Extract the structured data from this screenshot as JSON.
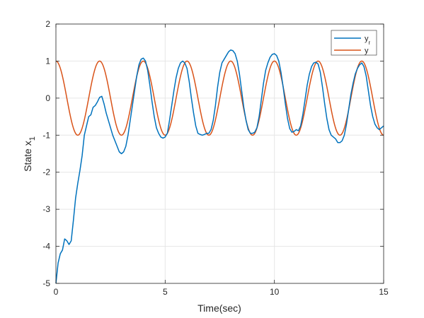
{
  "chart_data": {
    "type": "line",
    "xlabel": "Time(sec)",
    "ylabel": "State x",
    "ylabel_subscript": "1",
    "xlim": [
      0,
      15
    ],
    "ylim": [
      -5,
      2
    ],
    "xticks": [
      0,
      5,
      10,
      15
    ],
    "yticks": [
      -5,
      -4,
      -3,
      -2,
      -1,
      0,
      1,
      2
    ],
    "grid": true,
    "legend_position": "top-right",
    "series": [
      {
        "name": "y",
        "name_subscript": "r",
        "color": "#0072BD",
        "x": [
          0.0,
          0.1,
          0.2,
          0.3,
          0.4,
          0.5,
          0.6,
          0.7,
          0.8,
          0.9,
          1.0,
          1.1,
          1.2,
          1.3,
          1.4,
          1.5,
          1.6,
          1.7,
          1.8,
          1.9,
          2.0,
          2.1,
          2.2,
          2.3,
          2.4,
          2.5,
          2.6,
          2.7,
          2.8,
          2.9,
          3.0,
          3.1,
          3.2,
          3.3,
          3.4,
          3.5,
          3.6,
          3.7,
          3.8,
          3.9,
          4.0,
          4.1,
          4.2,
          4.3,
          4.4,
          4.5,
          4.6,
          4.7,
          4.8,
          4.9,
          5.0,
          5.1,
          5.2,
          5.3,
          5.4,
          5.5,
          5.6,
          5.7,
          5.8,
          5.9,
          6.0,
          6.1,
          6.2,
          6.3,
          6.4,
          6.5,
          6.6,
          6.7,
          6.8,
          6.9,
          7.0,
          7.1,
          7.2,
          7.3,
          7.4,
          7.5,
          7.6,
          7.7,
          7.8,
          7.9,
          8.0,
          8.1,
          8.2,
          8.3,
          8.4,
          8.5,
          8.6,
          8.7,
          8.8,
          8.9,
          9.0,
          9.1,
          9.2,
          9.3,
          9.4,
          9.5,
          9.6,
          9.7,
          9.8,
          9.9,
          10.0,
          10.1,
          10.2,
          10.3,
          10.4,
          10.5,
          10.6,
          10.7,
          10.8,
          10.9,
          11.0,
          11.1,
          11.2,
          11.3,
          11.4,
          11.5,
          11.6,
          11.7,
          11.8,
          11.9,
          12.0,
          12.1,
          12.2,
          12.3,
          12.4,
          12.5,
          12.6,
          12.7,
          12.8,
          12.9,
          13.0,
          13.1,
          13.2,
          13.3,
          13.4,
          13.5,
          13.6,
          13.7,
          13.8,
          13.9,
          14.0,
          14.1,
          14.2,
          14.3,
          14.4,
          14.5,
          14.6,
          14.7,
          14.8,
          14.9,
          15.0
        ],
        "y": [
          -5.0,
          -4.45,
          -4.2,
          -4.1,
          -3.8,
          -3.85,
          -3.95,
          -3.85,
          -3.3,
          -2.7,
          -2.3,
          -1.95,
          -1.55,
          -1.0,
          -0.75,
          -0.5,
          -0.45,
          -0.25,
          -0.2,
          -0.1,
          0.02,
          0.05,
          -0.15,
          -0.4,
          -0.6,
          -0.8,
          -1.0,
          -1.15,
          -1.3,
          -1.45,
          -1.5,
          -1.45,
          -1.3,
          -1.0,
          -0.6,
          -0.2,
          0.2,
          0.6,
          0.9,
          1.05,
          1.08,
          1.0,
          0.75,
          0.35,
          -0.1,
          -0.5,
          -0.8,
          -0.95,
          -1.05,
          -1.08,
          -1.05,
          -0.95,
          -0.6,
          -0.2,
          0.2,
          0.55,
          0.8,
          0.95,
          1.0,
          0.95,
          0.8,
          0.45,
          0.0,
          -0.4,
          -0.75,
          -0.95,
          -0.98,
          -1.0,
          -0.98,
          -0.95,
          -0.95,
          -0.85,
          -0.6,
          -0.2,
          0.3,
          0.7,
          0.95,
          1.05,
          1.15,
          1.25,
          1.3,
          1.28,
          1.2,
          1.0,
          0.65,
          0.2,
          -0.25,
          -0.6,
          -0.85,
          -0.95,
          -0.95,
          -0.92,
          -0.8,
          -0.5,
          -0.05,
          0.4,
          0.75,
          0.95,
          1.1,
          1.18,
          1.2,
          1.15,
          1.0,
          0.7,
          0.3,
          -0.15,
          -0.55,
          -0.82,
          -0.92,
          -0.9,
          -0.85,
          -0.88,
          -0.75,
          -0.45,
          -0.05,
          0.35,
          0.65,
          0.85,
          0.95,
          0.97,
          0.92,
          0.7,
          0.3,
          -0.15,
          -0.55,
          -0.85,
          -1.0,
          -1.05,
          -1.1,
          -1.2,
          -1.2,
          -1.15,
          -1.0,
          -0.7,
          -0.3,
          0.1,
          0.4,
          0.65,
          0.8,
          0.9,
          0.95,
          0.85,
          0.6,
          0.2,
          -0.2,
          -0.5,
          -0.7,
          -0.8,
          -0.85,
          -0.8,
          -0.75
        ]
      },
      {
        "name": "y",
        "color": "#D95319",
        "function": "cos(pi*t)",
        "x_range": [
          0,
          15
        ]
      }
    ]
  }
}
